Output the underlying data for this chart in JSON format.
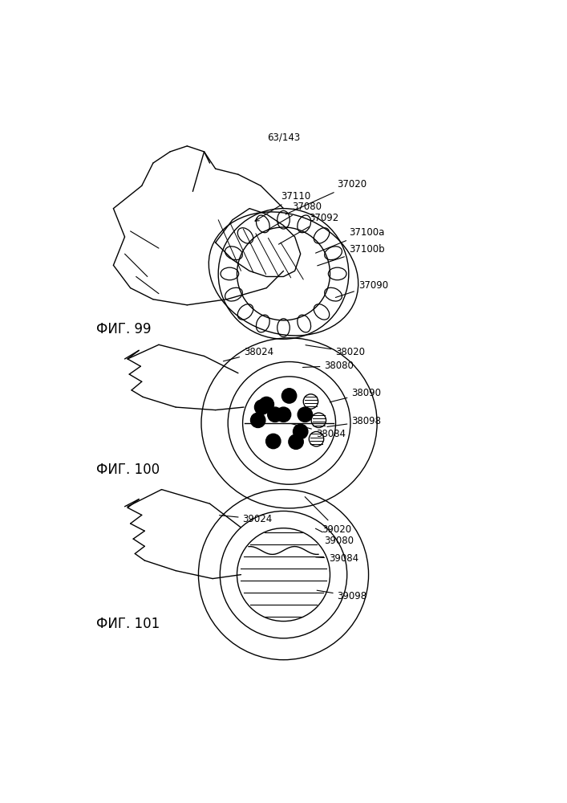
{
  "page_number": "63/143",
  "fig99_label": "ФИГ. 99",
  "fig100_label": "ФИГ. 100",
  "fig101_label": "ФИГ. 101",
  "bg_color": "#ffffff",
  "line_color": "#000000",
  "font_size": 8.5
}
